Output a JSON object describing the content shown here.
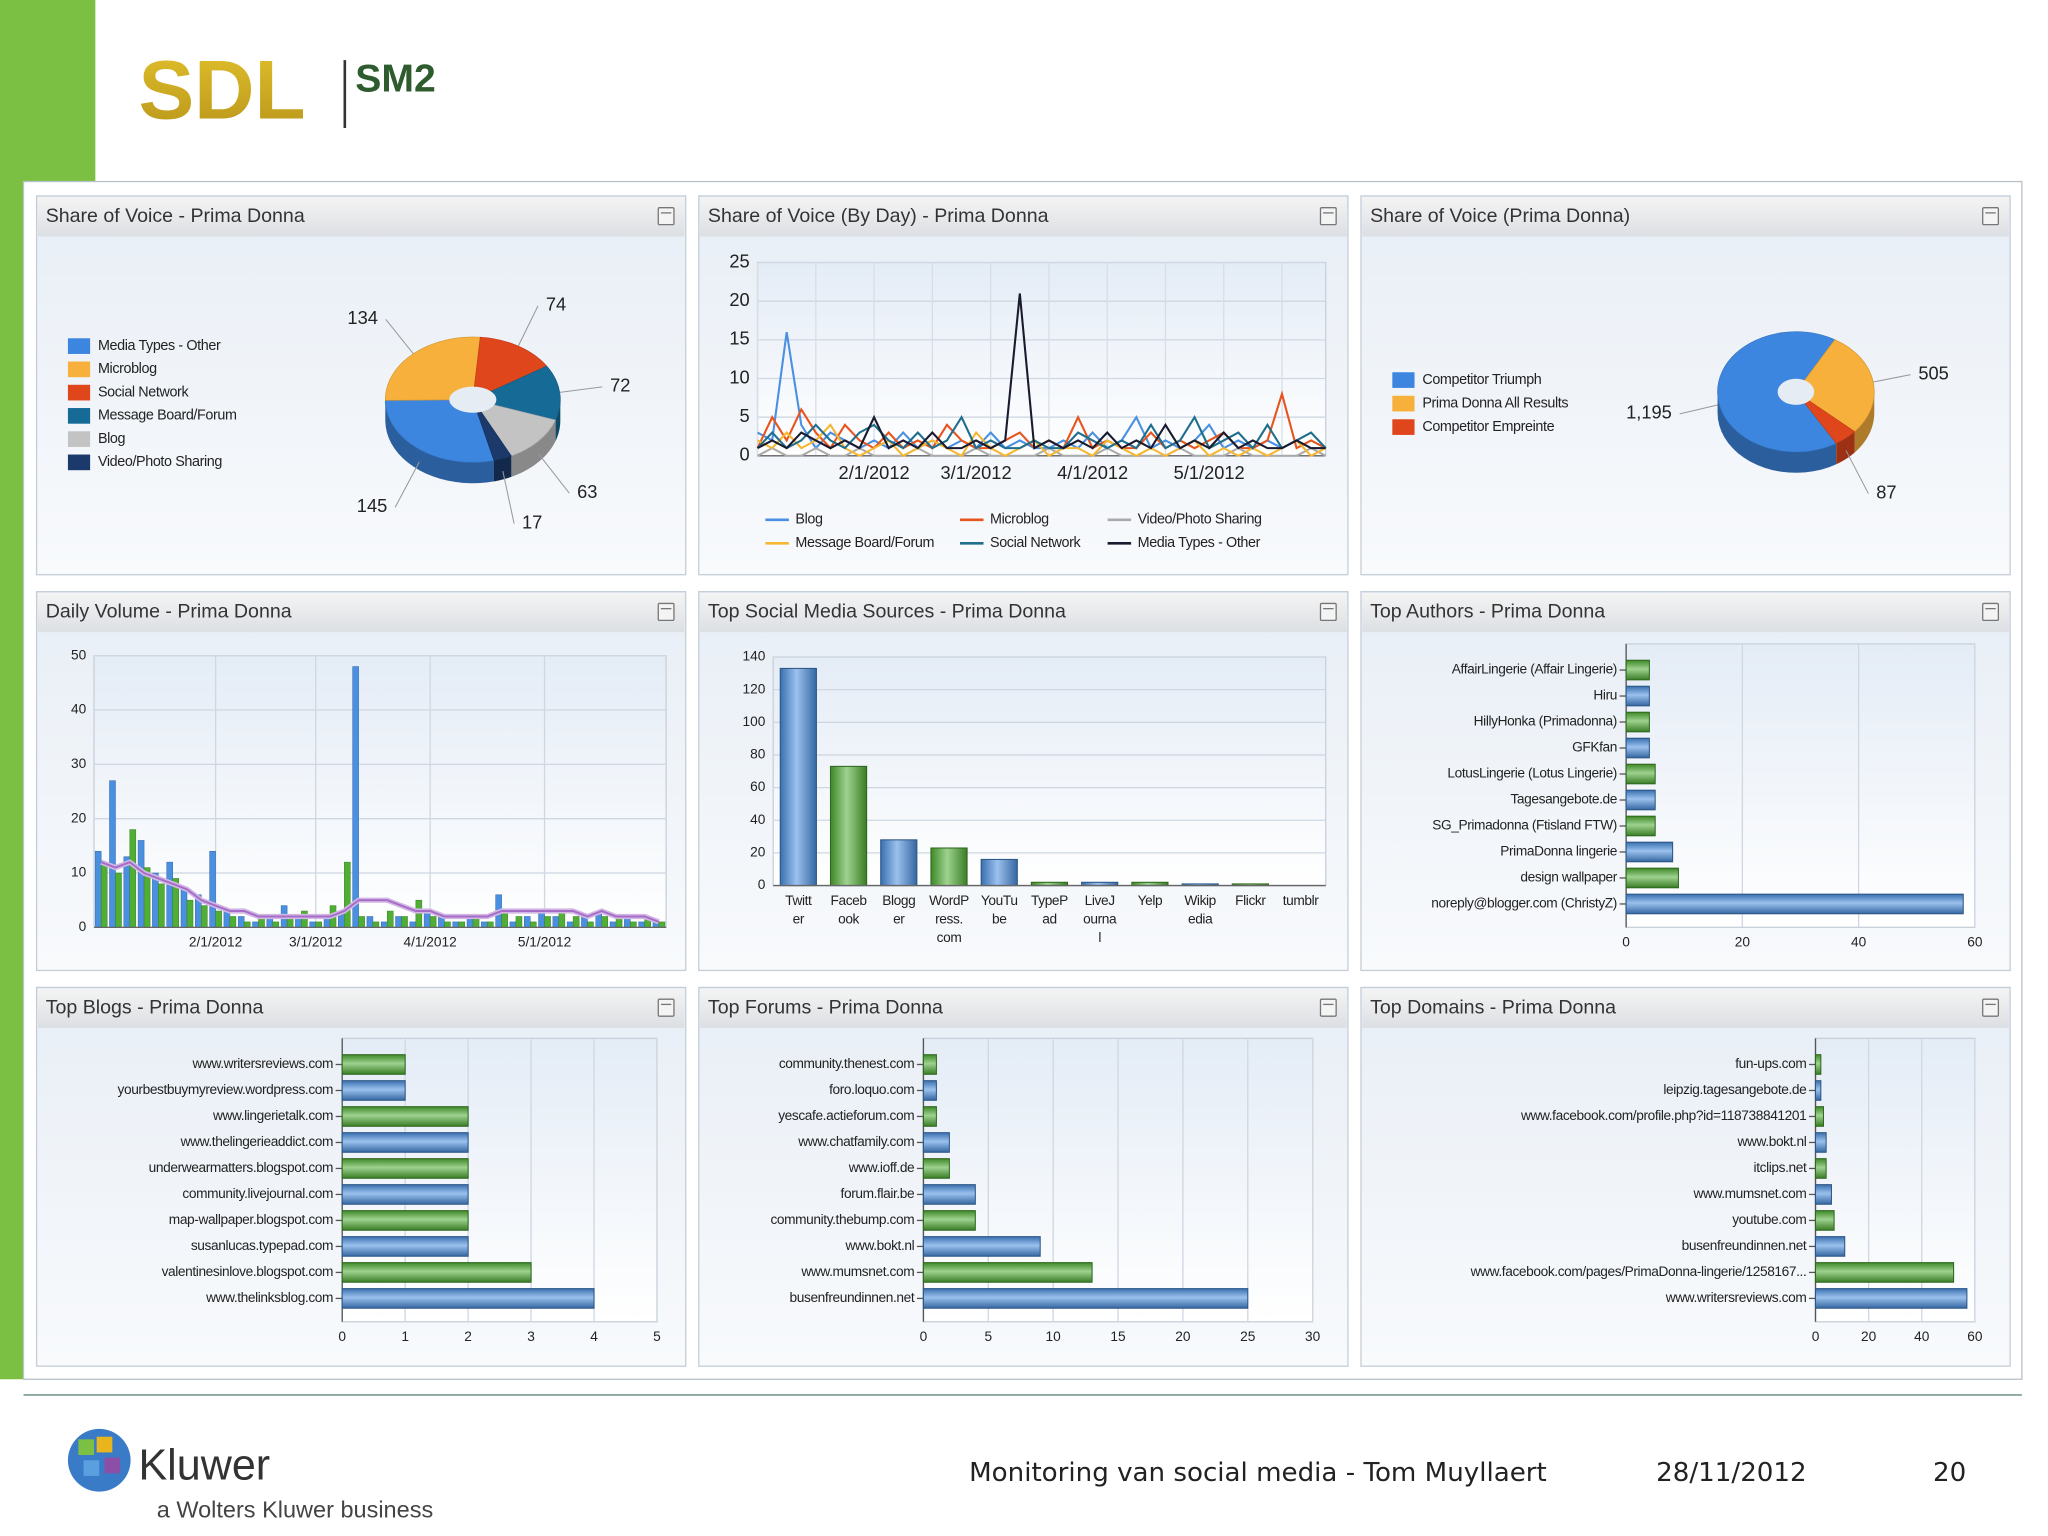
{
  "header": {
    "logo": "SDL",
    "product": "SM2"
  },
  "footer": {
    "logo": "Kluwer",
    "tagline": "a Wolters Kluwer business",
    "text": "Monitoring van social media - Tom Muyllaert",
    "date": "28/11/2012",
    "page": "20"
  },
  "chart_data": [
    {
      "type": "pie",
      "title": "Share of Voice - Prima Donna",
      "categories": [
        "Media Types - Other",
        "Microblog",
        "Social Network",
        "Message Board/Forum",
        "Blog",
        "Video/Photo Sharing"
      ],
      "values": [
        145,
        134,
        74,
        72,
        63,
        17
      ],
      "colors": [
        "#3d86e0",
        "#f7b03c",
        "#e0461c",
        "#156b96",
        "#c3c3c3",
        "#1b3a6b"
      ]
    },
    {
      "type": "line",
      "title": "Share of Voice (By Day) - Prima Donna",
      "categories": [
        null,
        null,
        null,
        null,
        null,
        null,
        null,
        null,
        "2/1/2012",
        null,
        null,
        null,
        null,
        null,
        null,
        "3/1/2012",
        null,
        null,
        null,
        null,
        null,
        null,
        null,
        "4/1/2012",
        null,
        null,
        null,
        null,
        null,
        null,
        null,
        "5/1/2012",
        null,
        null,
        null,
        null,
        null,
        null,
        null,
        null
      ],
      "ylim": [
        0,
        25
      ],
      "yticks": [
        0,
        5,
        10,
        15,
        20,
        25
      ],
      "grid": true,
      "series": [
        {
          "name": "Blog",
          "color": "#4a90e2",
          "values": [
            3,
            2,
            16,
            4,
            1,
            3,
            2,
            1,
            2,
            1,
            3,
            1,
            2,
            1,
            2,
            1,
            3,
            1,
            2,
            1,
            1,
            2,
            1,
            3,
            1,
            2,
            5,
            1,
            2,
            1,
            2,
            4,
            1,
            2,
            1,
            2,
            1,
            2,
            1,
            1
          ]
        },
        {
          "name": "Microblog",
          "color": "#e8541e",
          "values": [
            1,
            5,
            2,
            6,
            3,
            1,
            4,
            2,
            1,
            3,
            1,
            2,
            1,
            4,
            2,
            1,
            1,
            2,
            3,
            1,
            2,
            1,
            5,
            1,
            2,
            1,
            1,
            3,
            1,
            2,
            1,
            2,
            3,
            1,
            1,
            2,
            8,
            1,
            2,
            1
          ]
        },
        {
          "name": "Video/Photo Sharing",
          "color": "#aaaaaa",
          "values": [
            0,
            1,
            0,
            0,
            1,
            0,
            0,
            1,
            0,
            0,
            0,
            1,
            0,
            0,
            0,
            1,
            0,
            0,
            0,
            0,
            1,
            0,
            0,
            0,
            1,
            0,
            0,
            0,
            0,
            1,
            0,
            0,
            0,
            1,
            0,
            0,
            0,
            0,
            1,
            0
          ]
        },
        {
          "name": "Message Board/Forum",
          "color": "#f5b731",
          "values": [
            2,
            1,
            3,
            1,
            2,
            4,
            1,
            0,
            1,
            2,
            0,
            1,
            2,
            1,
            0,
            3,
            1,
            0,
            1,
            2,
            0,
            1,
            1,
            0,
            2,
            1,
            0,
            1,
            0,
            1,
            2,
            0,
            1,
            0,
            1,
            0,
            1,
            2,
            0,
            1
          ]
        },
        {
          "name": "Social Network",
          "color": "#1f6e8c",
          "values": [
            1,
            3,
            1,
            2,
            4,
            2,
            1,
            3,
            4,
            2,
            1,
            3,
            1,
            2,
            5,
            1,
            2,
            1,
            1,
            2,
            1,
            1,
            3,
            2,
            1,
            2,
            1,
            4,
            1,
            2,
            5,
            1,
            2,
            3,
            1,
            4,
            1,
            2,
            3,
            1
          ]
        },
        {
          "name": "Media Types - Other",
          "color": "#1a1a2e",
          "values": [
            1,
            2,
            1,
            3,
            2,
            1,
            2,
            1,
            5,
            1,
            2,
            1,
            3,
            1,
            1,
            2,
            1,
            2,
            21,
            1,
            2,
            1,
            2,
            1,
            3,
            1,
            2,
            1,
            4,
            1,
            2,
            1,
            3,
            1,
            2,
            1,
            1,
            2,
            1,
            1
          ]
        }
      ]
    },
    {
      "type": "pie",
      "title": "Share of Voice (Prima Donna)",
      "categories": [
        "Competitor Triumph",
        "Prima Donna All Results",
        "Competitor Empreinte"
      ],
      "values": [
        1195,
        505,
        87
      ],
      "value_labels": [
        "1,195",
        "505",
        "87"
      ],
      "colors": [
        "#3d86e0",
        "#f7b03c",
        "#e0461c"
      ]
    },
    {
      "type": "bar",
      "title": "Daily Volume - Prima Donna",
      "categories": [
        null,
        null,
        null,
        null,
        null,
        null,
        null,
        null,
        "2/1/2012",
        null,
        null,
        null,
        null,
        null,
        null,
        "3/1/2012",
        null,
        null,
        null,
        null,
        null,
        null,
        null,
        "4/1/2012",
        null,
        null,
        null,
        null,
        null,
        null,
        null,
        "5/1/2012",
        null,
        null,
        null,
        null,
        null,
        null,
        null,
        null
      ],
      "ylim": [
        0,
        50
      ],
      "yticks": [
        0,
        10,
        20,
        30,
        40,
        50
      ],
      "grid": true,
      "series": [
        {
          "type": "bar",
          "color": "#4a8fe0",
          "values": [
            14,
            27,
            13,
            16,
            10,
            12,
            7,
            6,
            14,
            3,
            2,
            1,
            2,
            4,
            2,
            1,
            2,
            3,
            48,
            2,
            1,
            2,
            1,
            3,
            2,
            1,
            2,
            1,
            6,
            1,
            2,
            3,
            2,
            1,
            2,
            3,
            1,
            2,
            1,
            1
          ]
        },
        {
          "type": "bar",
          "color": "#4fae33",
          "values": [
            12,
            10,
            18,
            11,
            8,
            9,
            5,
            4,
            3,
            2,
            1,
            2,
            1,
            2,
            3,
            1,
            4,
            12,
            2,
            1,
            3,
            2,
            5,
            2,
            1,
            1,
            2,
            1,
            3,
            2,
            1,
            2,
            3,
            2,
            1,
            2,
            2,
            1,
            2,
            1
          ]
        },
        {
          "type": "line",
          "color": "#a56cc8",
          "values": [
            12,
            11,
            12,
            10,
            9,
            8,
            7,
            5,
            4,
            3,
            3,
            2,
            2,
            2,
            2,
            2,
            2,
            3,
            5,
            5,
            5,
            4,
            3,
            3,
            2,
            2,
            2,
            2,
            3,
            3,
            3,
            3,
            3,
            3,
            2,
            3,
            2,
            2,
            2,
            1
          ]
        }
      ]
    },
    {
      "type": "bar",
      "title": "Top Social Media Sources - Prima Donna",
      "categories": [
        "Twitter",
        "Facebook",
        "Blogger",
        "WordPress.com",
        "YouTube",
        "TypePad",
        "LiveJournal",
        "Yelp",
        "Wikipedia",
        "Flickr",
        "tumblr"
      ],
      "values": [
        133,
        73,
        28,
        23,
        16,
        2,
        2,
        2,
        1,
        1,
        0
      ],
      "colors": [
        "#4a8fe0",
        "#4fae33",
        "#4a8fe0",
        "#4fae33",
        "#4a8fe0",
        "#4fae33",
        "#4a8fe0",
        "#4fae33",
        "#4a8fe0",
        "#4fae33",
        "#4a8fe0"
      ],
      "ylim": [
        0,
        140
      ],
      "yticks": [
        0,
        20,
        40,
        60,
        80,
        100,
        120,
        140
      ],
      "grid": true
    },
    {
      "type": "barh",
      "title": "Top Authors  - Prima Donna",
      "categories": [
        "AffairLingerie (Affair Lingerie)",
        "Hiru",
        "HillyHonka (Primadonna)",
        "GFKfan",
        "LotusLingerie (Lotus Lingerie)",
        "Tagesangebote.de",
        "SG_Primadonna (Ftisland FTW)",
        "PrimaDonna lingerie",
        "design wallpaper",
        "noreply@blogger.com (ChristyZ)"
      ],
      "values": [
        4,
        4,
        4,
        4,
        5,
        5,
        5,
        8,
        9,
        58
      ],
      "colors": [
        "#4fae33",
        "#4a8fe0",
        "#4fae33",
        "#4a8fe0",
        "#4fae33",
        "#4a8fe0",
        "#4fae33",
        "#4a8fe0",
        "#4fae33",
        "#4a8fe0"
      ],
      "xlim": [
        0,
        60
      ],
      "xticks": [
        0,
        20,
        40,
        60
      ],
      "grid": true
    },
    {
      "type": "barh",
      "title": "Top Blogs - Prima Donna",
      "categories": [
        "www.writersreviews.com",
        "yourbestbuymyreview.wordpress.com",
        "www.lingerietalk.com",
        "www.thelingerieaddict.com",
        "underwearmatters.blogspot.com",
        "community.livejournal.com",
        "map-wallpaper.blogspot.com",
        "susanlucas.typepad.com",
        "valentinesinlove.blogspot.com",
        "www.thelinksblog.com"
      ],
      "values": [
        1,
        1,
        2,
        2,
        2,
        2,
        2,
        2,
        3,
        4
      ],
      "colors": [
        "#4fae33",
        "#4a8fe0",
        "#4fae33",
        "#4a8fe0",
        "#4fae33",
        "#4a8fe0",
        "#4fae33",
        "#4a8fe0",
        "#4fae33",
        "#4a8fe0"
      ],
      "xlim": [
        0,
        5
      ],
      "xticks": [
        0,
        1,
        2,
        3,
        4,
        5
      ],
      "grid": true
    },
    {
      "type": "barh",
      "title": "Top Forums - Prima Donna",
      "categories": [
        "community.thenest.com",
        "foro.loquo.com",
        "yescafe.actieforum.com",
        "www.chatfamily.com",
        "www.ioff.de",
        "forum.flair.be",
        "community.thebump.com",
        "www.bokt.nl",
        "www.mumsnet.com",
        "busenfreundinnen.net"
      ],
      "values": [
        1,
        1,
        1,
        2,
        2,
        4,
        4,
        9,
        13,
        25
      ],
      "colors": [
        "#4fae33",
        "#4a8fe0",
        "#4fae33",
        "#4a8fe0",
        "#4fae33",
        "#4a8fe0",
        "#4fae33",
        "#4a8fe0",
        "#4fae33",
        "#4a8fe0"
      ],
      "xlim": [
        0,
        30
      ],
      "xticks": [
        0,
        5,
        10,
        15,
        20,
        25,
        30
      ],
      "grid": true
    },
    {
      "type": "barh",
      "title": "Top Domains - Prima Donna",
      "categories": [
        "fun-ups.com",
        "leipzig.tagesangebote.de",
        "www.facebook.com/profile.php?id=118738841201",
        "www.bokt.nl",
        "itclips.net",
        "www.mumsnet.com",
        "youtube.com",
        "busenfreundinnen.net",
        "www.facebook.com/pages/PrimaDonna-lingerie/1258167...",
        "www.writersreviews.com"
      ],
      "values": [
        2,
        2,
        3,
        4,
        4,
        6,
        7,
        11,
        52,
        57
      ],
      "colors": [
        "#4fae33",
        "#4a8fe0",
        "#4fae33",
        "#4a8fe0",
        "#4fae33",
        "#4a8fe0",
        "#4fae33",
        "#4a8fe0",
        "#4fae33",
        "#4a8fe0"
      ],
      "xlim": [
        0,
        60
      ],
      "xticks": [
        0,
        20,
        40,
        60
      ],
      "grid": true
    }
  ]
}
